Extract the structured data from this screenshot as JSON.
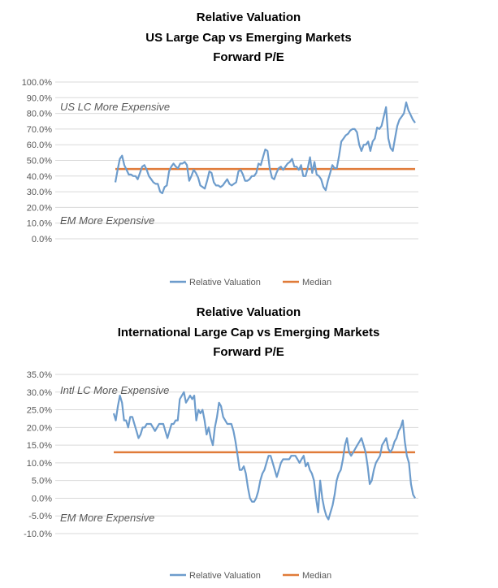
{
  "colors": {
    "series": "#6d9ccc",
    "median": "#e07b39",
    "grid": "#d9d9d9",
    "text": "#595959",
    "title": "#000000"
  },
  "chart_data": [
    {
      "type": "line",
      "title_lines": [
        "Relative Valuation",
        "US Large Cap vs Emerging Markets",
        "Forward P/E"
      ],
      "y_ticks": [
        "100.0%",
        "90.0%",
        "80.0%",
        "70.0%",
        "60.0%",
        "50.0%",
        "40.0%",
        "30.0%",
        "20.0%",
        "10.0%",
        "0.0%"
      ],
      "ylim": [
        0,
        100
      ],
      "grid": true,
      "legend_position": "bottom",
      "annotations": [
        "US LC More Expensive",
        "EM More Expensive"
      ],
      "series": [
        {
          "name": "Relative Valuation",
          "values": [
            36,
            44,
            51,
            53,
            47,
            44,
            41,
            41,
            40,
            40,
            38,
            42,
            46,
            47,
            44,
            40,
            38,
            36,
            35,
            35,
            30,
            29,
            33,
            34,
            43,
            46,
            48,
            46,
            45,
            48,
            48,
            49,
            47,
            37,
            40,
            44,
            42,
            39,
            34,
            33,
            32,
            37,
            43,
            42,
            36,
            34,
            34,
            33,
            34,
            36,
            38,
            35,
            34,
            35,
            36,
            43,
            44,
            41,
            37,
            37,
            38,
            40,
            40,
            42,
            48,
            47,
            52,
            57,
            56,
            45,
            39,
            38,
            42,
            45,
            46,
            44,
            46,
            48,
            49,
            51,
            46,
            46,
            44,
            47,
            40,
            40,
            45,
            52,
            42,
            49,
            41,
            40,
            38,
            33,
            31,
            37,
            42,
            47,
            45,
            45,
            53,
            62,
            64,
            66,
            67,
            69,
            70,
            70,
            68,
            60,
            56,
            60,
            60,
            62,
            56,
            62,
            64,
            71,
            70,
            72,
            78,
            84,
            64,
            58,
            56,
            64,
            72,
            76,
            78,
            80,
            87,
            82,
            79,
            76,
            74
          ]
        },
        {
          "name": "Median",
          "value": 44.5
        }
      ]
    },
    {
      "type": "line",
      "title_lines": [
        "Relative Valuation",
        "International Large Cap vs Emerging Markets",
        "Forward P/E"
      ],
      "y_ticks": [
        "35.0%",
        "30.0%",
        "25.0%",
        "20.0%",
        "15.0%",
        "10.0%",
        "5.0%",
        "0.0%",
        "-5.0%",
        "-10.0%"
      ],
      "ylim": [
        -10,
        35
      ],
      "grid": true,
      "legend_position": "bottom",
      "annotations": [
        "Intl LC More Expensive",
        "EM More Expensive"
      ],
      "series": [
        {
          "name": "Relative Valuation",
          "values": [
            24,
            22,
            26,
            29,
            27,
            22,
            22,
            20,
            23,
            23,
            21,
            19,
            17,
            18,
            20,
            20,
            21,
            21,
            21,
            20,
            19,
            20,
            21,
            21,
            21,
            19,
            17,
            19,
            21,
            21,
            22,
            22,
            28,
            29,
            30,
            27,
            28,
            29,
            28,
            29,
            22,
            25,
            24,
            25,
            22,
            18,
            20,
            17,
            15,
            20,
            23,
            27,
            26,
            23,
            22,
            21,
            21,
            21,
            19,
            16,
            12,
            8,
            8,
            9,
            7,
            3,
            0,
            -1,
            -1,
            0,
            2,
            5,
            7,
            8,
            10,
            12,
            12,
            10,
            8,
            6,
            8,
            10,
            11,
            11,
            11,
            11,
            12,
            12,
            12,
            11,
            10,
            11,
            12,
            9,
            10,
            8,
            7,
            5,
            0,
            -4,
            5,
            0,
            -3,
            -5,
            -6,
            -4,
            -2,
            1,
            5,
            7,
            8,
            11,
            15,
            17,
            13,
            12,
            13,
            14,
            15,
            16,
            17,
            15,
            13,
            9,
            4,
            5,
            8,
            10,
            11,
            12,
            15,
            16,
            17,
            14,
            13,
            14,
            16,
            17,
            19,
            20,
            22,
            16,
            12,
            10,
            4,
            1,
            0
          ]
        },
        {
          "name": "Median",
          "value": 13
        }
      ]
    }
  ]
}
